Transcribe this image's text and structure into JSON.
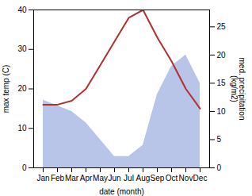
{
  "chart_data": {
    "type": "line",
    "categories": [
      "Jan",
      "Feb",
      "Mar",
      "Apr",
      "May",
      "Jun",
      "Jul",
      "Aug",
      "Sep",
      "Oct",
      "Nov",
      "Dec"
    ],
    "series": [
      {
        "type": "area",
        "axis": "y2",
        "color": "#b8c4e8",
        "values": [
          12,
          11,
          10,
          8,
          5,
          2,
          2,
          4,
          13,
          18,
          20,
          15
        ]
      },
      {
        "type": "line",
        "color": "#b03030",
        "values": [
          16,
          16,
          17,
          20,
          26,
          32,
          38,
          40,
          33,
          27,
          20,
          15
        ]
      }
    ],
    "xlabel": "date (month)",
    "ylabel": "max temp (C)",
    "y2label": "med. precipitation\n(kg/m2)",
    "ylim": [
      0,
      40
    ],
    "yticks": [
      0,
      10,
      20,
      30,
      40
    ],
    "y2lim": [
      0,
      28
    ],
    "y2ticks": [
      0,
      5,
      10,
      15,
      20,
      25
    ]
  }
}
